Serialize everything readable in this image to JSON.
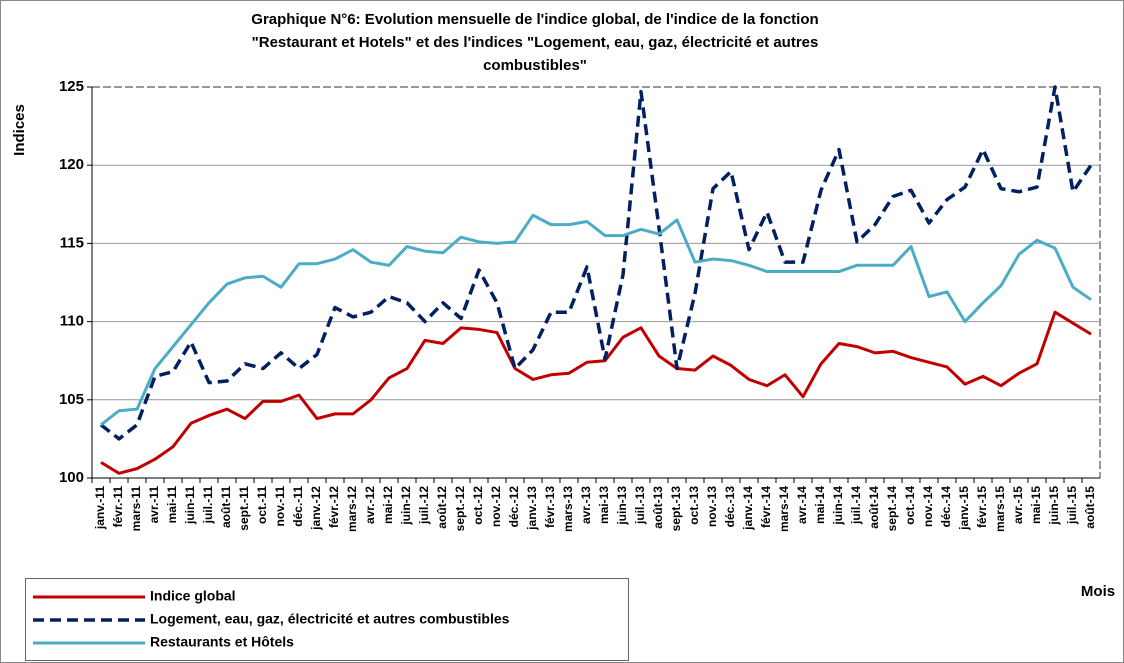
{
  "chart_data": {
    "type": "line",
    "title": [
      "Graphique N°6: Evolution  mensuelle de l'indice global, de l'indice de la fonction",
      "\"Restaurant et Hotels\" et des l'indices \"Logement, eau, gaz, électricité et autres",
      "combustibles\""
    ],
    "y_label": "Indices",
    "x_label": "Mois",
    "categories": [
      "janv.-11",
      "févr.-11",
      "mars-11",
      "avr.-11",
      "mai-11",
      "juin-11",
      "juil.-11",
      "août-11",
      "sept.-11",
      "oct.-11",
      "nov.-11",
      "déc.-11",
      "janv.-12",
      "févr.-12",
      "mars-12",
      "avr.-12",
      "mai-12",
      "juin-12",
      "juil.-12",
      "août-12",
      "sept.-12",
      "oct.-12",
      "nov.-12",
      "déc.-12",
      "janv.-13",
      "févr.-13",
      "mars-13",
      "avr.-13",
      "mai-13",
      "juin-13",
      "juil.-13",
      "août-13",
      "sept.-13",
      "oct.-13",
      "nov.-13",
      "déc.-13",
      "janv.-14",
      "févr.-14",
      "mars-14",
      "avr.-14",
      "mai-14",
      "juin-14",
      "juil.-14",
      "août-14",
      "sept.-14",
      "oct.-14",
      "nov.-14",
      "déc.-14",
      "janv.-15",
      "févr.-15",
      "mars-15",
      "avr.-15",
      "mai-15",
      "juin-15",
      "juil.-15",
      "août-15"
    ],
    "series": [
      {
        "name": "Indice global",
        "color": "#c00000",
        "dashed": false,
        "values": [
          101.0,
          100.3,
          100.6,
          101.2,
          102.0,
          103.5,
          104.0,
          104.4,
          103.8,
          104.9,
          104.9,
          105.3,
          103.8,
          104.1,
          104.1,
          105.0,
          106.4,
          107.0,
          108.8,
          108.6,
          109.6,
          109.5,
          109.3,
          107.0,
          106.3,
          106.6,
          106.7,
          107.4,
          107.5,
          109.0,
          109.6,
          107.8,
          107.0,
          106.9,
          107.8,
          107.2,
          106.3,
          105.9,
          106.6,
          105.2,
          107.3,
          108.6,
          108.4,
          108.0,
          108.1,
          107.7,
          107.4,
          107.1,
          106.0,
          106.5,
          105.9,
          106.7,
          107.3,
          110.6,
          109.9,
          109.2
        ]
      },
      {
        "name": "Logement, eau, gaz, électricité et autres combustibles",
        "color": "#002060",
        "dashed": true,
        "values": [
          103.4,
          102.5,
          103.4,
          106.5,
          106.8,
          108.7,
          106.1,
          106.2,
          107.3,
          107.0,
          108.0,
          107.0,
          107.9,
          110.9,
          110.3,
          110.6,
          111.6,
          111.2,
          110.0,
          111.2,
          110.2,
          113.3,
          111.2,
          107.0,
          108.2,
          110.6,
          110.6,
          113.5,
          107.6,
          113.0,
          124.7,
          116.0,
          107.0,
          111.8,
          118.5,
          119.6,
          114.6,
          117.0,
          113.8,
          113.8,
          118.4,
          121.0,
          115.1,
          116.2,
          118.0,
          118.4,
          116.3,
          117.8,
          118.6,
          121.0,
          118.5,
          118.3,
          118.6,
          125.0,
          118.3,
          120.0
        ]
      },
      {
        "name": "Restaurants et Hôtels",
        "color": "#4bacc6",
        "dashed": false,
        "values": [
          103.4,
          104.3,
          104.4,
          107.0,
          108.4,
          109.8,
          111.2,
          112.4,
          112.8,
          112.9,
          112.2,
          113.7,
          113.7,
          114.0,
          114.6,
          113.8,
          113.6,
          114.8,
          114.5,
          114.4,
          115.4,
          115.1,
          115.0,
          115.1,
          116.8,
          116.2,
          116.2,
          116.4,
          115.5,
          115.5,
          115.9,
          115.6,
          116.5,
          113.8,
          114.0,
          113.9,
          113.6,
          113.2,
          113.2,
          113.2,
          113.2,
          113.2,
          113.6,
          113.6,
          113.6,
          114.8,
          111.6,
          111.9,
          110.0,
          111.2,
          112.3,
          114.3,
          115.2,
          114.7,
          112.2,
          111.4
        ]
      }
    ],
    "ylim": [
      100,
      125
    ],
    "yticks": [
      100,
      105,
      110,
      115,
      120,
      125
    ],
    "grid": true,
    "legend": "bottom-left"
  }
}
